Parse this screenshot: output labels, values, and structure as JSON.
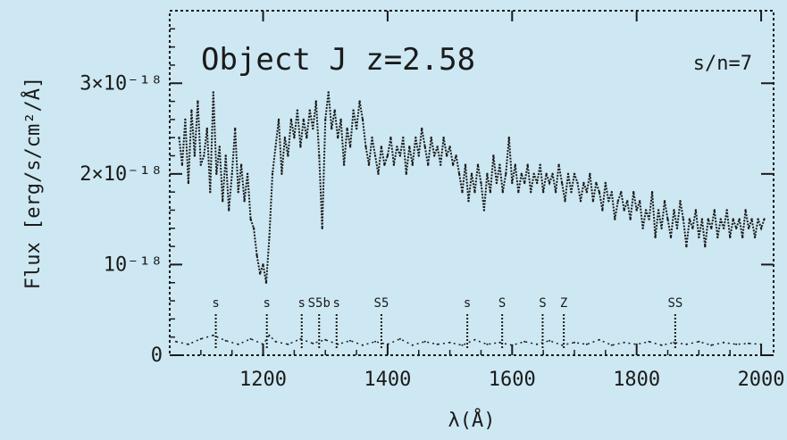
{
  "chart_data": {
    "type": "line",
    "title": "Object J  z=2.58",
    "subtitle": "s/n=7",
    "xlabel": "λ(Å)",
    "ylabel": "Flux [erg/s/cm²/Å]",
    "xlim": [
      1050,
      2020
    ],
    "ylim": [
      0,
      3.8e-18
    ],
    "x_ticks": [
      1200,
      1400,
      1600,
      1800,
      2000
    ],
    "y_ticks": [
      {
        "value": 0,
        "label": "0"
      },
      {
        "value": 1e-18,
        "label": "10⁻¹⁸"
      },
      {
        "value": 2e-18,
        "label": "2×10⁻¹⁸"
      },
      {
        "value": 3e-18,
        "label": "3×10⁻¹⁸"
      }
    ],
    "series": [
      {
        "values": [
          [
            1065,
            2.4e-18
          ],
          [
            1070,
            2.1e-18
          ],
          [
            1075,
            2.6e-18
          ],
          [
            1080,
            1.9e-18
          ],
          [
            1085,
            2.7e-18
          ],
          [
            1090,
            2.2e-18
          ],
          [
            1095,
            2.8e-18
          ],
          [
            1100,
            2.1e-18
          ],
          [
            1105,
            2.2e-18
          ],
          [
            1110,
            2.5e-18
          ],
          [
            1115,
            1.8e-18
          ],
          [
            1120,
            2.9e-18
          ],
          [
            1125,
            2e-18
          ],
          [
            1130,
            2.3e-18
          ],
          [
            1135,
            1.7e-18
          ],
          [
            1140,
            2.2e-18
          ],
          [
            1145,
            1.6e-18
          ],
          [
            1150,
            2e-18
          ],
          [
            1155,
            2.5e-18
          ],
          [
            1160,
            1.8e-18
          ],
          [
            1165,
            2.1e-18
          ],
          [
            1170,
            1.7e-18
          ],
          [
            1175,
            2e-18
          ],
          [
            1180,
            1.5e-18
          ],
          [
            1185,
            1.4e-18
          ],
          [
            1190,
            1.1e-18
          ],
          [
            1195,
            9e-19
          ],
          [
            1200,
            1e-18
          ],
          [
            1205,
            8e-19
          ],
          [
            1210,
            1.3e-18
          ],
          [
            1215,
            2e-18
          ],
          [
            1220,
            2.3e-18
          ],
          [
            1225,
            2.6e-18
          ],
          [
            1230,
            2e-18
          ],
          [
            1235,
            2.4e-18
          ],
          [
            1240,
            2.2e-18
          ],
          [
            1245,
            2.6e-18
          ],
          [
            1250,
            2.4e-18
          ],
          [
            1255,
            2.7e-18
          ],
          [
            1260,
            2.3e-18
          ],
          [
            1265,
            2.6e-18
          ],
          [
            1270,
            2.4e-18
          ],
          [
            1275,
            2.7e-18
          ],
          [
            1280,
            2.5e-18
          ],
          [
            1285,
            2.8e-18
          ],
          [
            1290,
            2.2e-18
          ],
          [
            1295,
            1.4e-18
          ],
          [
            1300,
            2.6e-18
          ],
          [
            1305,
            2.9e-18
          ],
          [
            1310,
            2.5e-18
          ],
          [
            1315,
            2.7e-18
          ],
          [
            1320,
            2.4e-18
          ],
          [
            1325,
            2.6e-18
          ],
          [
            1330,
            2.1e-18
          ],
          [
            1335,
            2.5e-18
          ],
          [
            1340,
            2.3e-18
          ],
          [
            1345,
            2.7e-18
          ],
          [
            1350,
            2.5e-18
          ],
          [
            1355,
            2.8e-18
          ],
          [
            1360,
            2.6e-18
          ],
          [
            1365,
            2.3e-18
          ],
          [
            1370,
            2.1e-18
          ],
          [
            1375,
            2.4e-18
          ],
          [
            1380,
            2.2e-18
          ],
          [
            1385,
            2e-18
          ],
          [
            1390,
            2.3e-18
          ],
          [
            1395,
            2.1e-18
          ],
          [
            1400,
            2.2e-18
          ],
          [
            1405,
            2.4e-18
          ],
          [
            1410,
            2.1e-18
          ],
          [
            1415,
            2.3e-18
          ],
          [
            1420,
            2.2e-18
          ],
          [
            1425,
            2.4e-18
          ],
          [
            1430,
            2e-18
          ],
          [
            1435,
            2.3e-18
          ],
          [
            1440,
            2.1e-18
          ],
          [
            1445,
            2.4e-18
          ],
          [
            1450,
            2.2e-18
          ],
          [
            1455,
            2.5e-18
          ],
          [
            1460,
            2.3e-18
          ],
          [
            1465,
            2.1e-18
          ],
          [
            1470,
            2.4e-18
          ],
          [
            1475,
            2.2e-18
          ],
          [
            1480,
            2.3e-18
          ],
          [
            1485,
            2.1e-18
          ],
          [
            1490,
            2.4e-18
          ],
          [
            1495,
            2.2e-18
          ],
          [
            1500,
            2.3e-18
          ],
          [
            1505,
            2.1e-18
          ],
          [
            1510,
            2.2e-18
          ],
          [
            1515,
            2e-18
          ],
          [
            1520,
            1.8e-18
          ],
          [
            1525,
            2.1e-18
          ],
          [
            1530,
            1.7e-18
          ],
          [
            1535,
            2e-18
          ],
          [
            1540,
            1.8e-18
          ],
          [
            1545,
            2.1e-18
          ],
          [
            1550,
            1.9e-18
          ],
          [
            1555,
            1.6e-18
          ],
          [
            1560,
            2e-18
          ],
          [
            1565,
            1.8e-18
          ],
          [
            1570,
            2.2e-18
          ],
          [
            1575,
            1.9e-18
          ],
          [
            1580,
            2.1e-18
          ],
          [
            1585,
            1.8e-18
          ],
          [
            1590,
            2e-18
          ],
          [
            1595,
            2.4e-18
          ],
          [
            1600,
            1.9e-18
          ],
          [
            1605,
            2.1e-18
          ],
          [
            1610,
            1.8e-18
          ],
          [
            1615,
            2e-18
          ],
          [
            1620,
            1.9e-18
          ],
          [
            1625,
            2.1e-18
          ],
          [
            1630,
            1.8e-18
          ],
          [
            1635,
            2e-18
          ],
          [
            1640,
            1.9e-18
          ],
          [
            1645,
            2.1e-18
          ],
          [
            1650,
            1.8e-18
          ],
          [
            1655,
            2e-18
          ],
          [
            1660,
            1.9e-18
          ],
          [
            1665,
            2e-18
          ],
          [
            1670,
            1.8e-18
          ],
          [
            1675,
            2.1e-18
          ],
          [
            1680,
            1.9e-18
          ],
          [
            1685,
            1.7e-18
          ],
          [
            1690,
            2e-18
          ],
          [
            1695,
            1.8e-18
          ],
          [
            1700,
            2e-18
          ],
          [
            1705,
            1.9e-18
          ],
          [
            1710,
            1.7e-18
          ],
          [
            1715,
            1.9e-18
          ],
          [
            1720,
            1.8e-18
          ],
          [
            1725,
            2e-18
          ],
          [
            1730,
            1.7e-18
          ],
          [
            1735,
            1.9e-18
          ],
          [
            1740,
            1.8e-18
          ],
          [
            1745,
            1.6e-18
          ],
          [
            1750,
            1.9e-18
          ],
          [
            1755,
            1.7e-18
          ],
          [
            1760,
            1.8e-18
          ],
          [
            1765,
            1.5e-18
          ],
          [
            1770,
            1.7e-18
          ],
          [
            1775,
            1.8e-18
          ],
          [
            1780,
            1.6e-18
          ],
          [
            1785,
            1.7e-18
          ],
          [
            1790,
            1.5e-18
          ],
          [
            1795,
            1.8e-18
          ],
          [
            1800,
            1.6e-18
          ],
          [
            1805,
            1.7e-18
          ],
          [
            1810,
            1.4e-18
          ],
          [
            1815,
            1.6e-18
          ],
          [
            1820,
            1.5e-18
          ],
          [
            1825,
            1.8e-18
          ],
          [
            1830,
            1.3e-18
          ],
          [
            1835,
            1.6e-18
          ],
          [
            1840,
            1.4e-18
          ],
          [
            1845,
            1.7e-18
          ],
          [
            1850,
            1.5e-18
          ],
          [
            1855,
            1.3e-18
          ],
          [
            1860,
            1.6e-18
          ],
          [
            1865,
            1.4e-18
          ],
          [
            1870,
            1.7e-18
          ],
          [
            1875,
            1.5e-18
          ],
          [
            1880,
            1.2e-18
          ],
          [
            1885,
            1.5e-18
          ],
          [
            1890,
            1.4e-18
          ],
          [
            1895,
            1.6e-18
          ],
          [
            1900,
            1.3e-18
          ],
          [
            1905,
            1.5e-18
          ],
          [
            1910,
            1.2e-18
          ],
          [
            1915,
            1.5e-18
          ],
          [
            1920,
            1.4e-18
          ],
          [
            1925,
            1.6e-18
          ],
          [
            1930,
            1.3e-18
          ],
          [
            1935,
            1.5e-18
          ],
          [
            1940,
            1.4e-18
          ],
          [
            1945,
            1.6e-18
          ],
          [
            1950,
            1.3e-18
          ],
          [
            1955,
            1.5e-18
          ],
          [
            1960,
            1.4e-18
          ],
          [
            1965,
            1.5e-18
          ],
          [
            1970,
            1.3e-18
          ],
          [
            1975,
            1.6e-18
          ],
          [
            1980,
            1.4e-18
          ],
          [
            1985,
            1.5e-18
          ],
          [
            1990,
            1.3e-18
          ],
          [
            1995,
            1.5e-18
          ],
          [
            2000,
            1.4e-18
          ],
          [
            2005,
            1.5e-18
          ]
        ]
      },
      {
        "values": [
          [
            1060,
            1.5e-19
          ],
          [
            1080,
            1.2e-19
          ],
          [
            1100,
            1.8e-19
          ],
          [
            1120,
            2.2e-19
          ],
          [
            1140,
            1.6e-19
          ],
          [
            1160,
            1.2e-19
          ],
          [
            1180,
            1.8e-19
          ],
          [
            1200,
            1.2e-19
          ],
          [
            1210,
            2.2e-19
          ],
          [
            1220,
            1.5e-19
          ],
          [
            1240,
            1.2e-19
          ],
          [
            1260,
            1.8e-19
          ],
          [
            1280,
            1.3e-19
          ],
          [
            1300,
            1.7e-19
          ],
          [
            1320,
            1.2e-19
          ],
          [
            1340,
            1.6e-19
          ],
          [
            1360,
            1.1e-19
          ],
          [
            1380,
            1.5e-19
          ],
          [
            1400,
            1.2e-19
          ],
          [
            1420,
            1.8e-19
          ],
          [
            1440,
            1.1e-19
          ],
          [
            1460,
            1.5e-19
          ],
          [
            1480,
            1.2e-19
          ],
          [
            1500,
            1.4e-19
          ],
          [
            1520,
            1.1e-19
          ],
          [
            1540,
            1.7e-19
          ],
          [
            1560,
            1.2e-19
          ],
          [
            1580,
            1.4e-19
          ],
          [
            1600,
            1.1e-19
          ],
          [
            1620,
            1.5e-19
          ],
          [
            1640,
            1.2e-19
          ],
          [
            1660,
            1.6e-19
          ],
          [
            1680,
            1.1e-19
          ],
          [
            1700,
            1.4e-19
          ],
          [
            1720,
            1.2e-19
          ],
          [
            1740,
            1.7e-19
          ],
          [
            1760,
            1.1e-19
          ],
          [
            1780,
            1.4e-19
          ],
          [
            1800,
            1.2e-19
          ],
          [
            1820,
            1.5e-19
          ],
          [
            1840,
            1.1e-19
          ],
          [
            1860,
            1.4e-19
          ],
          [
            1880,
            1.2e-19
          ],
          [
            1900,
            1.5e-19
          ],
          [
            1920,
            1.1e-19
          ],
          [
            1940,
            1.4e-19
          ],
          [
            1960,
            1.2e-19
          ],
          [
            1980,
            1.3e-19
          ],
          [
            2000,
            1.2e-19
          ]
        ]
      }
    ],
    "line_markers": [
      {
        "x": 1124,
        "label": "s"
      },
      {
        "x": 1206,
        "label": "s"
      },
      {
        "x": 1262,
        "label": "s"
      },
      {
        "x": 1290,
        "label": "S5b"
      },
      {
        "x": 1318,
        "label": "s"
      },
      {
        "x": 1390,
        "label": "S5"
      },
      {
        "x": 1528,
        "label": "s"
      },
      {
        "x": 1584,
        "label": "S"
      },
      {
        "x": 1649,
        "label": "S"
      },
      {
        "x": 1683,
        "label": "Z"
      },
      {
        "x": 1862,
        "label": "SS"
      }
    ],
    "grid": false,
    "legend": "none",
    "colors": {
      "background": "#cde8f2",
      "ink": "#1a1a1a"
    }
  }
}
